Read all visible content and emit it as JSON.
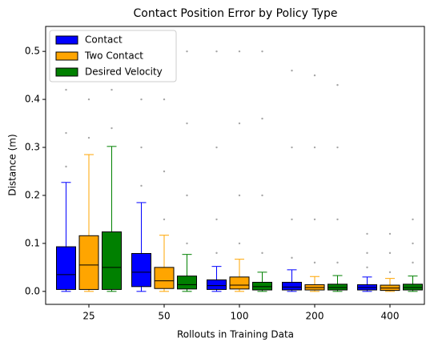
{
  "chart_data": {
    "type": "box",
    "title": "Contact Position Error by Policy Type",
    "x_label": "Rollouts in Training Data",
    "y_label": "Distance (m)",
    "categories": [
      "25",
      "50",
      "100",
      "200",
      "400"
    ],
    "ylim": [
      -0.027,
      0.552
    ],
    "yticks": [
      {
        "value": 0,
        "label": "0.0"
      },
      0.1,
      0.2,
      0.3,
      0.4,
      0.5
    ],
    "legend": "upper left",
    "series": [
      {
        "name": "Contact",
        "color": "#0000ff",
        "boxes": [
          {
            "whislo": 0,
            "q1": 0.004,
            "med": 0.035,
            "q3": 0.093,
            "whishi": 0.227,
            "fliers": [
              0.26,
              0.33,
              0.42,
              0.5
            ]
          },
          {
            "whislo": 0,
            "q1": 0.01,
            "med": 0.04,
            "q3": 0.079,
            "whishi": 0.185,
            "fliers": [
              0.22,
              0.3,
              0.4,
              0.5
            ]
          },
          {
            "whislo": 0,
            "q1": 0.004,
            "med": 0.012,
            "q3": 0.024,
            "whishi": 0.052,
            "fliers": [
              0.08,
              0.15,
              0.3,
              0.5
            ]
          },
          {
            "whislo": 0,
            "q1": 0.003,
            "med": 0.009,
            "q3": 0.019,
            "whishi": 0.045,
            "fliers": [
              0.07,
              0.15,
              0.3,
              0.46
            ]
          },
          {
            "whislo": 0,
            "q1": 0.003,
            "med": 0.008,
            "q3": 0.014,
            "whishi": 0.03,
            "fliers": [
              0.05,
              0.08,
              0.12
            ]
          }
        ]
      },
      {
        "name": "Two Contact",
        "color": "#ffa500",
        "boxes": [
          {
            "whislo": 0,
            "q1": 0.004,
            "med": 0.055,
            "q3": 0.116,
            "whishi": 0.285,
            "fliers": [
              0.32,
              0.4,
              0.5
            ]
          },
          {
            "whislo": 0,
            "q1": 0.006,
            "med": 0.022,
            "q3": 0.05,
            "whishi": 0.117,
            "fliers": [
              0.15,
              0.25,
              0.4,
              0.5
            ]
          },
          {
            "whislo": 0,
            "q1": 0.005,
            "med": 0.013,
            "q3": 0.03,
            "whishi": 0.067,
            "fliers": [
              0.1,
              0.2,
              0.35,
              0.5
            ]
          },
          {
            "whislo": 0,
            "q1": 0.003,
            "med": 0.008,
            "q3": 0.014,
            "whishi": 0.031,
            "fliers": [
              0.06,
              0.15,
              0.3,
              0.45
            ]
          },
          {
            "whislo": 0,
            "q1": 0.002,
            "med": 0.007,
            "q3": 0.013,
            "whishi": 0.027,
            "fliers": [
              0.04,
              0.08,
              0.12
            ]
          }
        ]
      },
      {
        "name": "Desired Velocity",
        "color": "#008000",
        "boxes": [
          {
            "whislo": 0,
            "q1": 0.004,
            "med": 0.05,
            "q3": 0.124,
            "whishi": 0.302,
            "fliers": [
              0.34,
              0.42,
              0.5
            ]
          },
          {
            "whislo": 0,
            "q1": 0.005,
            "med": 0.014,
            "q3": 0.032,
            "whishi": 0.077,
            "fliers": [
              0.1,
              0.2,
              0.35,
              0.5
            ]
          },
          {
            "whislo": 0,
            "q1": 0.003,
            "med": 0.01,
            "q3": 0.019,
            "whishi": 0.04,
            "fliers": [
              0.08,
              0.2,
              0.36,
              0.5
            ]
          },
          {
            "whislo": 0,
            "q1": 0.003,
            "med": 0.008,
            "q3": 0.015,
            "whishi": 0.033,
            "fliers": [
              0.06,
              0.15,
              0.3,
              0.43
            ]
          },
          {
            "whislo": 0,
            "q1": 0.003,
            "med": 0.008,
            "q3": 0.015,
            "whishi": 0.032,
            "fliers": [
              0.06,
              0.1,
              0.15
            ]
          }
        ]
      }
    ]
  }
}
